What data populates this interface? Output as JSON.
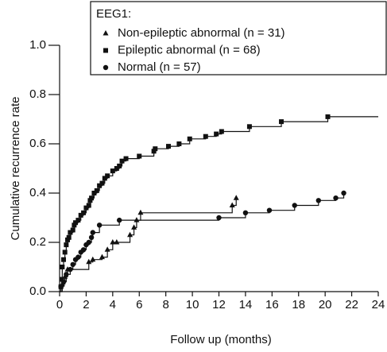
{
  "chart_data": {
    "type": "step",
    "legend_title": "EEG1:",
    "xlabel": "Follow up (months)",
    "ylabel": "Cumulative recurrence rate",
    "xlim": [
      0,
      24
    ],
    "ylim": [
      0,
      1
    ],
    "xticks": [
      0,
      2,
      4,
      6,
      8,
      10,
      12,
      14,
      16,
      18,
      20,
      22,
      24
    ],
    "yticks": [
      {
        "value": 0,
        "label": "0.0"
      },
      {
        "value": 0.2,
        "label": "0.2"
      },
      {
        "value": 0.4,
        "label": "0.4"
      },
      {
        "value": 0.6,
        "label": "0.6"
      },
      {
        "value": 0.8,
        "label": "0.8"
      },
      {
        "value": 1,
        "label": "1.0"
      }
    ],
    "color": "#111111",
    "series": [
      {
        "name": "Non-epileptic abnormal (n = 31)",
        "marker": "triangle",
        "x": [
          0.2,
          0.4,
          0.6,
          2.2,
          2.5,
          3.2,
          3.6,
          4.0,
          4.3,
          5.3,
          5.6,
          5.8,
          6.1,
          13.0,
          13.3
        ],
        "values": [
          0.03,
          0.06,
          0.09,
          0.12,
          0.13,
          0.14,
          0.17,
          0.2,
          0.2,
          0.23,
          0.26,
          0.29,
          0.32,
          0.35,
          0.38
        ]
      },
      {
        "name": "Epileptic abnormal (n = 68)",
        "marker": "square",
        "end": 24,
        "x": [
          0.1,
          0.15,
          0.2,
          0.3,
          0.4,
          0.5,
          0.6,
          0.7,
          0.8,
          1.0,
          1.1,
          1.2,
          1.4,
          1.6,
          1.8,
          2.0,
          2.2,
          2.3,
          2.4,
          2.6,
          2.8,
          3.0,
          3.2,
          3.4,
          3.6,
          4.0,
          4.3,
          4.5,
          4.7,
          5.0,
          6.0,
          7.1,
          7.2,
          8.2,
          9.0,
          9.8,
          11.0,
          11.8,
          12.2,
          14.3,
          16.7,
          20.2
        ],
        "values": [
          0.02,
          0.05,
          0.1,
          0.13,
          0.16,
          0.19,
          0.21,
          0.22,
          0.24,
          0.25,
          0.27,
          0.28,
          0.29,
          0.31,
          0.32,
          0.34,
          0.35,
          0.37,
          0.38,
          0.4,
          0.41,
          0.43,
          0.44,
          0.46,
          0.47,
          0.49,
          0.5,
          0.51,
          0.53,
          0.54,
          0.55,
          0.57,
          0.58,
          0.59,
          0.6,
          0.62,
          0.63,
          0.64,
          0.65,
          0.67,
          0.69,
          0.71
        ]
      },
      {
        "name": "Normal (n = 57)",
        "marker": "circle",
        "x": [
          0.1,
          0.3,
          0.5,
          0.8,
          1.0,
          1.2,
          1.4,
          1.6,
          1.8,
          2.0,
          2.2,
          2.4,
          2.5,
          3.0,
          4.5,
          12.0,
          14.0,
          15.8,
          17.7,
          19.5,
          20.8,
          21.4
        ],
        "values": [
          0.02,
          0.04,
          0.07,
          0.09,
          0.11,
          0.13,
          0.14,
          0.16,
          0.17,
          0.19,
          0.2,
          0.22,
          0.24,
          0.27,
          0.29,
          0.3,
          0.32,
          0.33,
          0.35,
          0.37,
          0.38,
          0.4
        ]
      }
    ]
  }
}
